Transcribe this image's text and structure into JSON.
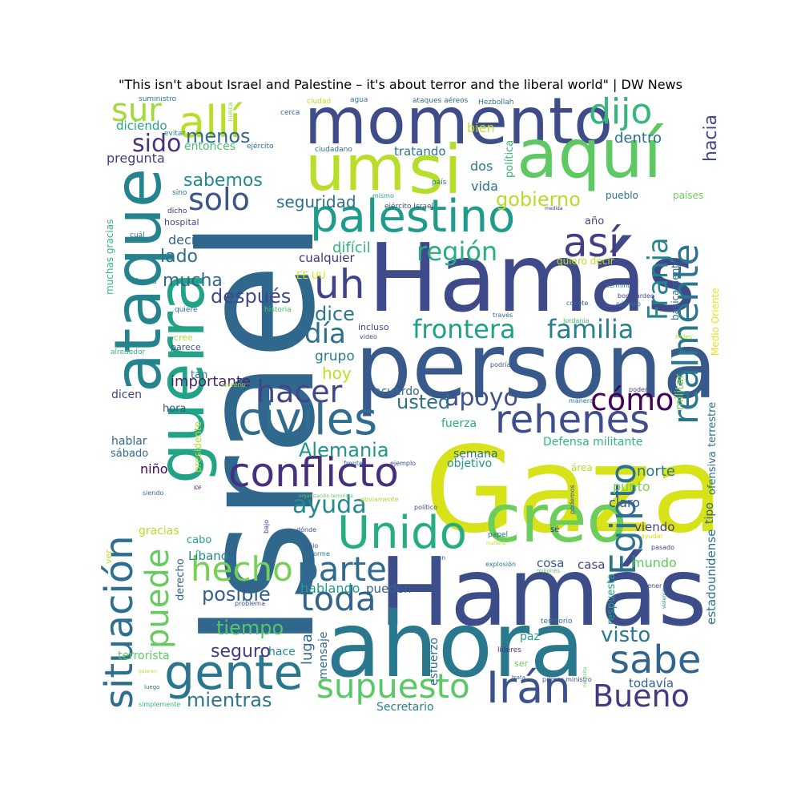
{
  "title": "\"This isn't about Israel and Palestine – it's about terror and the liberal world\" | DW News",
  "words": [
    {
      "text": "Israel",
      "color": "#30678d"
    },
    {
      "text": "Gaza",
      "color": "#d8e219"
    },
    {
      "text": "Hamás",
      "color": "#3e4a89"
    },
    {
      "text": "Hamás",
      "color": "#3d4d8a"
    },
    {
      "text": "persona",
      "color": "#38598c"
    },
    {
      "text": "ahora",
      "color": "#2a788e"
    },
    {
      "text": "guerra",
      "color": "#20a386"
    },
    {
      "text": "ataque",
      "color": "#25838e"
    },
    {
      "text": "momento",
      "color": "#3e4c8a"
    },
    {
      "text": "aquí",
      "color": "#5ec962"
    },
    {
      "text": "si",
      "color": "#b5de2b"
    },
    {
      "text": "um",
      "color": "#b8de29"
    },
    {
      "text": "creo",
      "color": "#6ccd5a"
    },
    {
      "text": "palestino",
      "color": "#1e9b8a"
    },
    {
      "text": "civiles",
      "color": "#2f6c8e"
    },
    {
      "text": "rehenes",
      "color": "#3d4e8a"
    },
    {
      "text": "conflicto",
      "color": "#46307e"
    },
    {
      "text": "Unido",
      "color": "#27ad81"
    },
    {
      "text": "situación",
      "color": "#2e6e8e"
    },
    {
      "text": "realmente",
      "color": "#2b758e"
    },
    {
      "text": "gente",
      "color": "#2a768e"
    },
    {
      "text": "sabe",
      "color": "#32648e"
    },
    {
      "text": "Irán",
      "color": "#3b528b"
    },
    {
      "text": "supuesto",
      "color": "#5ac864"
    },
    {
      "text": "allí",
      "color": "#b8de29"
    },
    {
      "text": "dijo",
      "color": "#35b779"
    },
    {
      "text": "sur",
      "color": "#a2da37"
    },
    {
      "text": "así",
      "color": "#423f85"
    },
    {
      "text": "uh",
      "color": "#414287"
    },
    {
      "text": "Egipto",
      "color": "#2c728e"
    },
    {
      "text": "hecho",
      "color": "#75d054"
    },
    {
      "text": "puede",
      "color": "#65cb5e"
    },
    {
      "text": "toda",
      "color": "#33638d"
    },
    {
      "text": "parte",
      "color": "#2f6b8e"
    },
    {
      "text": "Bueno",
      "color": "#443983"
    },
    {
      "text": "hacer",
      "color": "#3f4788"
    },
    {
      "text": "cómo",
      "color": "#440256"
    },
    {
      "text": "Franja",
      "color": "#25858e"
    },
    {
      "text": "solo",
      "color": "#3a548c"
    },
    {
      "text": "frontera",
      "color": "#1fa088"
    },
    {
      "text": "familia",
      "color": "#27808e"
    },
    {
      "text": "apoyo",
      "color": "#3b528b"
    },
    {
      "text": "región",
      "color": "#28ae80"
    },
    {
      "text": "día",
      "color": "#2d708e"
    },
    {
      "text": "ayuda",
      "color": "#23898e"
    },
    {
      "text": "Alemania",
      "color": "#1f958b"
    },
    {
      "text": "tiempo",
      "color": "#55c667"
    },
    {
      "text": "posible",
      "color": "#355f8d"
    },
    {
      "text": "mientras",
      "color": "#2b758e"
    },
    {
      "text": "visto",
      "color": "#29798e"
    },
    {
      "text": "después",
      "color": "#3f4889"
    },
    {
      "text": "sido",
      "color": "#46337f"
    },
    {
      "text": "menos",
      "color": "#31688e"
    },
    {
      "text": "gobierno",
      "color": "#b5de2b"
    },
    {
      "text": "usted",
      "color": "#2d708e"
    },
    {
      "text": "dice",
      "color": "#2a768e"
    },
    {
      "text": "seguro",
      "color": "#443a83"
    },
    {
      "text": "sabemos",
      "color": "#23898e"
    },
    {
      "text": "mucha",
      "color": "#31688e"
    },
    {
      "text": "lado",
      "color": "#2e6f8e"
    },
    {
      "text": "hoy",
      "color": "#bddf26"
    },
    {
      "text": "importante",
      "color": "#482374"
    },
    {
      "text": "seguridad",
      "color": "#2e6e8e"
    },
    {
      "text": "hacia",
      "color": "#3e4989"
    },
    {
      "text": "dentro",
      "color": "#2d718e"
    },
    {
      "text": "pregunta",
      "color": "#433d84"
    },
    {
      "text": "diciendo",
      "color": "#22a785"
    },
    {
      "text": "entonces",
      "color": "#48c16e"
    },
    {
      "text": "grupo",
      "color": "#277f8e"
    },
    {
      "text": "difícil",
      "color": "#32b67a"
    },
    {
      "text": "cualquier",
      "color": "#46327e"
    },
    {
      "text": "decir",
      "color": "#33638d"
    },
    {
      "text": "vida",
      "color": "#2c728e"
    },
    {
      "text": "dos",
      "color": "#287c8e"
    },
    {
      "text": "bien",
      "color": "#bddf26"
    },
    {
      "text": "tratando",
      "color": "#2a778e"
    },
    {
      "text": "todavía",
      "color": "#33638d"
    },
    {
      "text": "Secretario",
      "color": "#26828e"
    },
    {
      "text": "hablando",
      "color": "#1e9c89"
    },
    {
      "text": "lugar",
      "color": "#31668e"
    },
    {
      "text": "mensaje",
      "color": "#31688e"
    },
    {
      "text": "esfuerzo",
      "color": "#2f6b8e"
    },
    {
      "text": "pueden",
      "color": "#34618d"
    },
    {
      "text": "acuerdo",
      "color": "#2f6c8e"
    },
    {
      "text": "fuerza",
      "color": "#25ac82"
    },
    {
      "text": "semana",
      "color": "#2e6e8e"
    },
    {
      "text": "objetivo",
      "color": "#1f988b"
    },
    {
      "text": "norte",
      "color": "#2a768e"
    },
    {
      "text": "punto",
      "color": "#7ad151"
    },
    {
      "text": "claro",
      "color": "#3b528b"
    },
    {
      "text": "viendo",
      "color": "#423f85"
    },
    {
      "text": "mundo",
      "color": "#62cb5f"
    },
    {
      "text": "casa",
      "color": "#414487"
    },
    {
      "text": "cosa",
      "color": "#38588c"
    },
    {
      "text": "paz",
      "color": "#20a386"
    },
    {
      "text": "Defensa militante",
      "color": "#35b779"
    },
    {
      "text": "militar",
      "color": "#7ad151"
    },
    {
      "text": "Líbano",
      "color": "#24868e"
    },
    {
      "text": "niño",
      "color": "#440154"
    },
    {
      "text": "hace",
      "color": "#23888e"
    },
    {
      "text": "terrorista",
      "color": "#5ec962"
    },
    {
      "text": "derecho",
      "color": "#33638d"
    },
    {
      "text": "dicen",
      "color": "#414487"
    },
    {
      "text": "hora",
      "color": "#3a548c"
    },
    {
      "text": "hablar",
      "color": "#32658e"
    },
    {
      "text": "sábado",
      "color": "#2f6b8e"
    },
    {
      "text": "gracias",
      "color": "#b5de2b"
    },
    {
      "text": "cabo",
      "color": "#21a585"
    },
    {
      "text": "tan",
      "color": "#2d718e"
    },
    {
      "text": "país",
      "color": "#2a788e"
    },
    {
      "text": "básicamente",
      "color": "#2f6b8e"
    },
    {
      "text": "tipo",
      "color": "#35608d"
    },
    {
      "text": "estadounidense",
      "color": "#2c738e"
    },
    {
      "text": "terrestre",
      "color": "#2d708e"
    },
    {
      "text": "ofensiva",
      "color": "#2d708e"
    },
    {
      "text": "respuesta",
      "color": "#1fa187"
    },
    {
      "text": "política",
      "color": "#35b779"
    },
    {
      "text": "Medio Oriente",
      "color": "#e5e419"
    },
    {
      "text": "presidente",
      "color": "#aadc32"
    },
    {
      "text": "muchas gracias",
      "color": "#35b779"
    },
    {
      "text": "EE UU",
      "color": "#d2e21b"
    },
    {
      "text": "quiero decir",
      "color": "#c0df25"
    },
    {
      "text": "países",
      "color": "#6ece58"
    },
    {
      "text": "pueblo",
      "color": "#2d708e"
    },
    {
      "text": "año",
      "color": "#414487"
    },
    {
      "text": "incluso",
      "color": "#3e4a89"
    },
    {
      "text": "cree",
      "color": "#b5de2b"
    },
    {
      "text": "parece",
      "color": "#3b528b"
    },
    {
      "text": "hospital",
      "color": "#3e4989"
    },
    {
      "text": "sino",
      "color": "#2c728e"
    },
    {
      "text": "dicho",
      "color": "#472c7a"
    },
    {
      "text": "cuál",
      "color": "#2d708e"
    },
    {
      "text": "forma",
      "color": "#2a788e"
    },
    {
      "text": "quiere",
      "color": "#2c728e"
    },
    {
      "text": "historia",
      "color": "#46c06f"
    },
    {
      "text": "alrededor",
      "color": "#31b57b"
    },
    {
      "text": "ciudad",
      "color": "#bddf26"
    },
    {
      "text": "cerca",
      "color": "#31688e"
    },
    {
      "text": "agua",
      "color": "#2a788e"
    },
    {
      "text": "ataques aéreos",
      "color": "#31688e"
    },
    {
      "text": "Hezbollah",
      "color": "#2a788e"
    },
    {
      "text": "suministro",
      "color": "#287c8e"
    },
    {
      "text": "nunca",
      "color": "#7fd34e"
    },
    {
      "text": "evitar",
      "color": "#25848e"
    },
    {
      "text": "ejército",
      "color": "#2e6e8e"
    },
    {
      "text": "ciudadano",
      "color": "#2e6f8e"
    },
    {
      "text": "mismo",
      "color": "#22a884"
    },
    {
      "text": "ejército Israel",
      "color": "#3e4a89"
    },
    {
      "text": "medida",
      "color": "#46337f"
    },
    {
      "text": "término",
      "color": "#31688e"
    },
    {
      "text": "bombardeo",
      "color": "#3e4989"
    },
    {
      "text": "número",
      "color": "#2c728e"
    },
    {
      "text": "cohete",
      "color": "#33638d"
    },
    {
      "text": "través",
      "color": "#2e6e8e"
    },
    {
      "text": "Jordania",
      "color": "#46c06f"
    },
    {
      "text": "video",
      "color": "#3b528b"
    },
    {
      "text": "miles",
      "color": "#b5de2b"
    },
    {
      "text": "tratar",
      "color": "#31688e"
    },
    {
      "text": "poder",
      "color": "#433e85"
    },
    {
      "text": "manera",
      "color": "#2a788e"
    },
    {
      "text": "podría",
      "color": "#3b528b"
    },
    {
      "text": "sé",
      "color": "#472f7d"
    },
    {
      "text": "terreno",
      "color": "#aadc32"
    },
    {
      "text": "frente",
      "color": "#2c728e"
    },
    {
      "text": "ejemplo",
      "color": "#3e4a89"
    },
    {
      "text": "área",
      "color": "#b5de2b"
    },
    {
      "text": "IDF",
      "color": "#440154"
    },
    {
      "text": "siendo",
      "color": "#2e6e8e"
    },
    {
      "text": "organización terrorista",
      "color": "#5ec962"
    },
    {
      "text": "obviamente",
      "color": "#aadc32"
    },
    {
      "text": "político",
      "color": "#3b528b"
    },
    {
      "text": "podemos",
      "color": "#3b528b"
    },
    {
      "text": "bajo",
      "color": "#46337f"
    },
    {
      "text": "dónde",
      "color": "#3b528b"
    },
    {
      "text": "papel",
      "color": "#2a788e"
    },
    {
      "text": "mañana",
      "color": "#c8e020"
    },
    {
      "text": "ayudar",
      "color": "#d8e219"
    },
    {
      "text": "pasado",
      "color": "#414487"
    },
    {
      "text": "sólo",
      "color": "#3b528b"
    },
    {
      "text": "informe",
      "color": "#2c728e"
    },
    {
      "text": "gran",
      "color": "#31688e"
    },
    {
      "text": "explosión",
      "color": "#2a788e"
    },
    {
      "text": "millones",
      "color": "#5ec962"
    },
    {
      "text": "tener",
      "color": "#414487"
    },
    {
      "text": "violencia",
      "color": "#2a788e"
    },
    {
      "text": "problema",
      "color": "#3b528b"
    },
    {
      "text": "territorio",
      "color": "#2c728e"
    },
    {
      "text": "líderes",
      "color": "#46337f"
    },
    {
      "text": "primer ministro",
      "color": "#3e4a89"
    },
    {
      "text": "trata",
      "color": "#31688e"
    },
    {
      "text": "necesita",
      "color": "#5ec962"
    },
    {
      "text": "ser",
      "color": "#6ece58"
    },
    {
      "text": "quieren",
      "color": "#b5de2b"
    },
    {
      "text": "luego",
      "color": "#2c728e"
    },
    {
      "text": "simplemente",
      "color": "#35b779"
    },
    {
      "text": "ver",
      "color": "#bddf26"
    }
  ]
}
